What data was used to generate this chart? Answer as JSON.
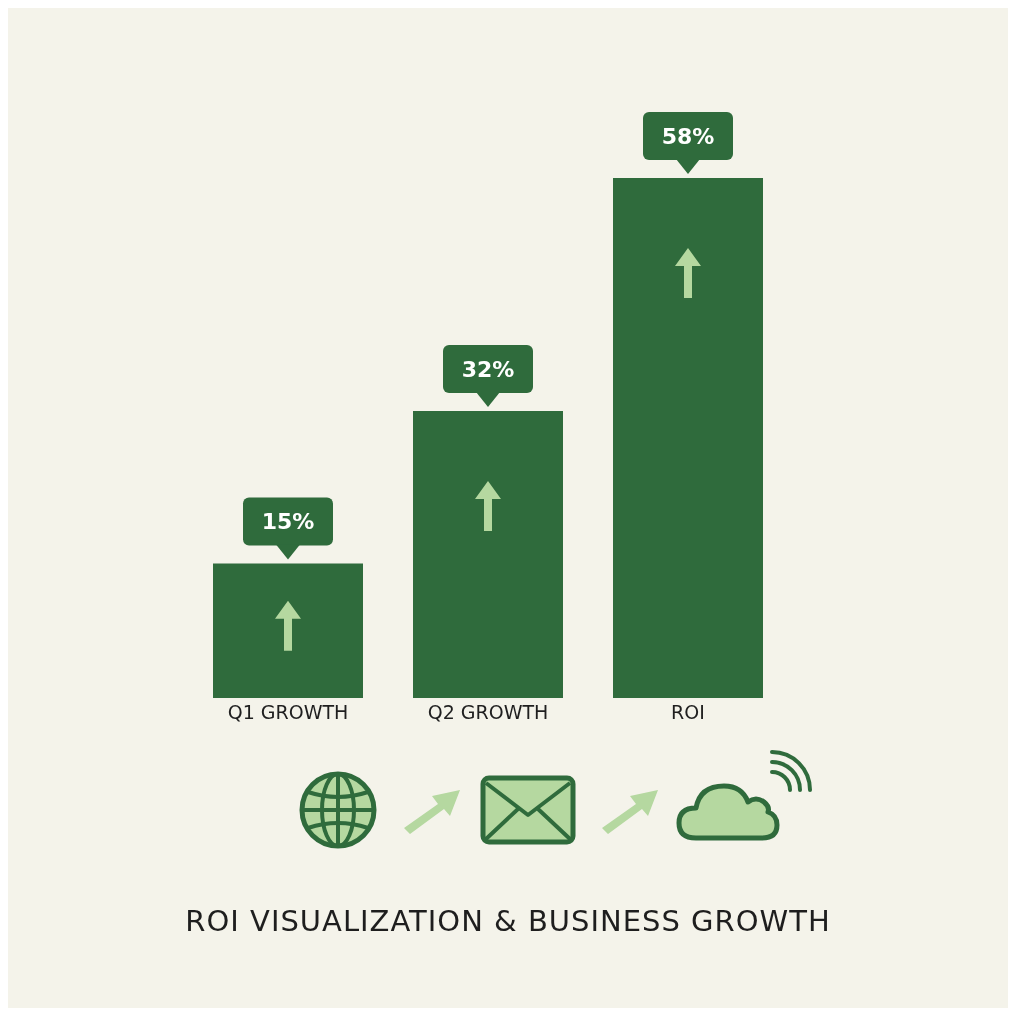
{
  "chart_data": {
    "type": "bar",
    "title": "ROI VISUALIZATION & BUSINESS GROWTH",
    "categories": [
      "Q1 GROWTH",
      "Q2 GROWTH",
      "ROI"
    ],
    "values": [
      15,
      32,
      58
    ],
    "value_labels": [
      "15%",
      "32%",
      "58%"
    ],
    "color": "#2f6b3c"
  }
}
